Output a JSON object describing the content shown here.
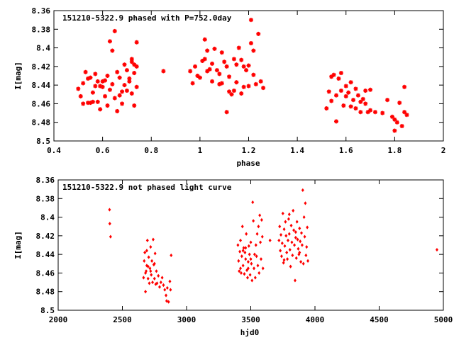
{
  "chart_data": [
    {
      "type": "scatter",
      "title": "151210-5322.9 phased with P=752.0day",
      "xlabel": "phase",
      "ylabel": "I[mag]",
      "xlim": [
        0.4,
        2.0
      ],
      "ylim": [
        8.36,
        8.5
      ],
      "y_inverted": true,
      "grid": false,
      "marker": "asterisk",
      "color": "#ff0000",
      "x_ticks": [
        "0.4",
        "0.6",
        "0.8",
        "1",
        "1.2",
        "1.4",
        "1.6",
        "1.8",
        "2"
      ],
      "y_ticks": [
        "8.36",
        "8.38",
        "8.4",
        "8.42",
        "8.44",
        "8.46",
        "8.48",
        "8.5"
      ],
      "x_tick_values": [
        0.4,
        0.6,
        0.8,
        1.0,
        1.2,
        1.4,
        1.6,
        1.8,
        2.0
      ],
      "y_tick_values": [
        8.36,
        8.38,
        8.4,
        8.42,
        8.44,
        8.46,
        8.48,
        8.5
      ],
      "points": [
        [
          0.5,
          8.444
        ],
        [
          0.51,
          8.452
        ],
        [
          0.52,
          8.438
        ],
        [
          0.53,
          8.426
        ],
        [
          0.54,
          8.459
        ],
        [
          0.55,
          8.432
        ],
        [
          0.56,
          8.448
        ],
        [
          0.57,
          8.428
        ],
        [
          0.58,
          8.458
        ],
        [
          0.59,
          8.441
        ],
        [
          0.6,
          8.436
        ],
        [
          0.61,
          8.452
        ],
        [
          0.62,
          8.43
        ],
        [
          0.62,
          8.462
        ],
        [
          0.63,
          8.445
        ],
        [
          0.64,
          8.439
        ],
        [
          0.65,
          8.454
        ],
        [
          0.66,
          8.468
        ],
        [
          0.67,
          8.432
        ],
        [
          0.68,
          8.447
        ],
        [
          0.69,
          8.44
        ],
        [
          0.7,
          8.424
        ],
        [
          0.71,
          8.436
        ],
        [
          0.72,
          8.412
        ],
        [
          0.72,
          8.449
        ],
        [
          0.73,
          8.418
        ],
        [
          0.74,
          8.42
        ],
        [
          0.74,
          8.442
        ],
        [
          0.55,
          8.459
        ],
        [
          0.57,
          8.441
        ],
        [
          0.59,
          8.466
        ],
        [
          0.61,
          8.435
        ],
        [
          0.63,
          8.393
        ],
        [
          0.64,
          8.403
        ],
        [
          0.65,
          8.382
        ],
        [
          0.67,
          8.451
        ],
        [
          0.69,
          8.418
        ],
        [
          0.71,
          8.433
        ],
        [
          0.73,
          8.462
        ],
        [
          0.74,
          8.394
        ],
        [
          0.52,
          8.46
        ],
        [
          0.54,
          8.433
        ],
        [
          0.56,
          8.458
        ],
        [
          0.58,
          8.436
        ],
        [
          0.6,
          8.442
        ],
        [
          0.66,
          8.426
        ],
        [
          0.68,
          8.46
        ],
        [
          0.7,
          8.446
        ],
        [
          0.72,
          8.415
        ],
        [
          0.73,
          8.427
        ],
        [
          0.85,
          8.425
        ],
        [
          0.96,
          8.425
        ],
        [
          0.97,
          8.438
        ],
        [
          0.98,
          8.42
        ],
        [
          0.99,
          8.43
        ],
        [
          1.0,
          8.432
        ],
        [
          1.01,
          8.414
        ],
        [
          1.02,
          8.391
        ],
        [
          1.03,
          8.403
        ],
        [
          1.04,
          8.423
        ],
        [
          1.05,
          8.436
        ],
        [
          1.06,
          8.401
        ],
        [
          1.07,
          8.424
        ],
        [
          1.08,
          8.439
        ],
        [
          1.09,
          8.405
        ],
        [
          1.1,
          8.415
        ],
        [
          1.11,
          8.42
        ],
        [
          1.12,
          8.431
        ],
        [
          1.13,
          8.45
        ],
        [
          1.14,
          8.446
        ],
        [
          1.15,
          8.437
        ],
        [
          1.16,
          8.4
        ],
        [
          1.17,
          8.413
        ],
        [
          1.18,
          8.442
        ],
        [
          1.19,
          8.424
        ],
        [
          1.2,
          8.419
        ],
        [
          1.21,
          8.37
        ],
        [
          1.22,
          8.429
        ],
        [
          1.23,
          8.439
        ],
        [
          1.24,
          8.385
        ],
        [
          1.25,
          8.436
        ],
        [
          1.26,
          8.443
        ],
        [
          1.02,
          8.412
        ],
        [
          1.08,
          8.428
        ],
        [
          1.12,
          8.447
        ],
        [
          1.14,
          8.412
        ],
        [
          1.18,
          8.42
        ],
        [
          1.2,
          8.441
        ],
        [
          1.22,
          8.403
        ],
        [
          1.09,
          8.438
        ],
        [
          1.11,
          8.469
        ],
        [
          1.15,
          8.418
        ],
        [
          1.03,
          8.425
        ],
        [
          1.05,
          8.417
        ],
        [
          1.17,
          8.449
        ],
        [
          1.21,
          8.395
        ],
        [
          1.52,
          8.465
        ],
        [
          1.53,
          8.447
        ],
        [
          1.54,
          8.457
        ],
        [
          1.55,
          8.429
        ],
        [
          1.56,
          8.479
        ],
        [
          1.57,
          8.433
        ],
        [
          1.58,
          8.446
        ],
        [
          1.59,
          8.462
        ],
        [
          1.6,
          8.441
        ],
        [
          1.61,
          8.448
        ],
        [
          1.62,
          8.437
        ],
        [
          1.63,
          8.456
        ],
        [
          1.64,
          8.465
        ],
        [
          1.65,
          8.451
        ],
        [
          1.66,
          8.469
        ],
        [
          1.67,
          8.455
        ],
        [
          1.68,
          8.46
        ],
        [
          1.69,
          8.469
        ],
        [
          1.7,
          8.467
        ],
        [
          1.72,
          8.469
        ],
        [
          1.75,
          8.47
        ],
        [
          1.77,
          8.456
        ],
        [
          1.79,
          8.474
        ],
        [
          1.8,
          8.489
        ],
        [
          1.81,
          8.48
        ],
        [
          1.82,
          8.459
        ],
        [
          1.83,
          8.484
        ],
        [
          1.84,
          8.469
        ],
        [
          1.84,
          8.442
        ],
        [
          1.85,
          8.472
        ],
        [
          1.58,
          8.427
        ],
        [
          1.6,
          8.452
        ],
        [
          1.62,
          8.463
        ],
        [
          1.64,
          8.444
        ],
        [
          1.66,
          8.458
        ],
        [
          1.54,
          8.431
        ],
        [
          1.56,
          8.451
        ],
        [
          1.68,
          8.446
        ],
        [
          1.7,
          8.445
        ],
        [
          1.8,
          8.477
        ]
      ]
    },
    {
      "type": "scatter",
      "title": "151210-5322.9 not phased light curve",
      "xlabel": "hjd0",
      "ylabel": "I[mag]",
      "xlim": [
        2000,
        5000
      ],
      "ylim": [
        8.36,
        8.5
      ],
      "y_inverted": true,
      "grid": false,
      "marker": "diamond",
      "color": "#ff0000",
      "x_ticks": [
        "2000",
        "2500",
        "3000",
        "3500",
        "4000",
        "4500",
        "5000"
      ],
      "y_ticks": [
        "8.36",
        "8.38",
        "8.4",
        "8.42",
        "8.44",
        "8.46",
        "8.48",
        "8.5"
      ],
      "x_tick_values": [
        2000,
        2500,
        3000,
        3500,
        4000,
        4500,
        5000
      ],
      "y_tick_values": [
        8.36,
        8.38,
        8.4,
        8.42,
        8.44,
        8.46,
        8.48,
        8.5
      ],
      "points": [
        [
          2400,
          8.392
        ],
        [
          2402,
          8.407
        ],
        [
          2408,
          8.421
        ],
        [
          2665,
          8.465
        ],
        [
          2670,
          8.447
        ],
        [
          2675,
          8.438
        ],
        [
          2680,
          8.48
        ],
        [
          2685,
          8.458
        ],
        [
          2690,
          8.452
        ],
        [
          2695,
          8.425
        ],
        [
          2700,
          8.466
        ],
        [
          2705,
          8.443
        ],
        [
          2710,
          8.471
        ],
        [
          2715,
          8.455
        ],
        [
          2720,
          8.432
        ],
        [
          2725,
          8.462
        ],
        [
          2730,
          8.447
        ],
        [
          2735,
          8.47
        ],
        [
          2740,
          8.424
        ],
        [
          2745,
          8.451
        ],
        [
          2750,
          8.466
        ],
        [
          2755,
          8.439
        ],
        [
          2760,
          8.472
        ],
        [
          2765,
          8.458
        ],
        [
          2770,
          8.471
        ],
        [
          2780,
          8.463
        ],
        [
          2790,
          8.475
        ],
        [
          2800,
          8.47
        ],
        [
          2810,
          8.465
        ],
        [
          2820,
          8.473
        ],
        [
          2830,
          8.478
        ],
        [
          2840,
          8.484
        ],
        [
          2845,
          8.49
        ],
        [
          2850,
          8.476
        ],
        [
          2860,
          8.491
        ],
        [
          2870,
          8.469
        ],
        [
          2875,
          8.478
        ],
        [
          2880,
          8.441
        ],
        [
          2700,
          8.453
        ],
        [
          2720,
          8.458
        ],
        [
          2750,
          8.45
        ],
        [
          2680,
          8.46
        ],
        [
          2690,
          8.436
        ],
        [
          3400,
          8.43
        ],
        [
          3405,
          8.447
        ],
        [
          3410,
          8.458
        ],
        [
          3415,
          8.437
        ],
        [
          3420,
          8.425
        ],
        [
          3425,
          8.46
        ],
        [
          3430,
          8.442
        ],
        [
          3435,
          8.41
        ],
        [
          3440,
          8.452
        ],
        [
          3445,
          8.433
        ],
        [
          3450,
          8.461
        ],
        [
          3455,
          8.438
        ],
        [
          3460,
          8.445
        ],
        [
          3465,
          8.418
        ],
        [
          3470,
          8.457
        ],
        [
          3475,
          8.465
        ],
        [
          3480,
          8.448
        ],
        [
          3485,
          8.431
        ],
        [
          3490,
          8.44
        ],
        [
          3495,
          8.462
        ],
        [
          3500,
          8.427
        ],
        [
          3505,
          8.45
        ],
        [
          3510,
          8.468
        ],
        [
          3515,
          8.384
        ],
        [
          3520,
          8.404
        ],
        [
          3525,
          8.455
        ],
        [
          3530,
          8.44
        ],
        [
          3535,
          8.465
        ],
        [
          3540,
          8.43
        ],
        [
          3545,
          8.442
        ],
        [
          3550,
          8.418
        ],
        [
          3555,
          8.452
        ],
        [
          3560,
          8.41
        ],
        [
          3565,
          8.46
        ],
        [
          3570,
          8.398
        ],
        [
          3575,
          8.427
        ],
        [
          3580,
          8.445
        ],
        [
          3585,
          8.403
        ],
        [
          3590,
          8.421
        ],
        [
          3595,
          8.455
        ],
        [
          3420,
          8.455
        ],
        [
          3440,
          8.436
        ],
        [
          3460,
          8.433
        ],
        [
          3480,
          8.455
        ],
        [
          3500,
          8.445
        ],
        [
          3650,
          8.425
        ],
        [
          3720,
          8.425
        ],
        [
          3725,
          8.41
        ],
        [
          3730,
          8.436
        ],
        [
          3735,
          8.419
        ],
        [
          3740,
          8.442
        ],
        [
          3745,
          8.428
        ],
        [
          3750,
          8.396
        ],
        [
          3755,
          8.449
        ],
        [
          3760,
          8.413
        ],
        [
          3765,
          8.431
        ],
        [
          3770,
          8.405
        ],
        [
          3775,
          8.42
        ],
        [
          3780,
          8.438
        ],
        [
          3785,
          8.445
        ],
        [
          3790,
          8.425
        ],
        [
          3795,
          8.402
        ],
        [
          3800,
          8.418
        ],
        [
          3805,
          8.435
        ],
        [
          3810,
          8.453
        ],
        [
          3815,
          8.409
        ],
        [
          3820,
          8.427
        ],
        [
          3825,
          8.441
        ],
        [
          3830,
          8.393
        ],
        [
          3835,
          8.414
        ],
        [
          3840,
          8.43
        ],
        [
          3845,
          8.468
        ],
        [
          3850,
          8.416
        ],
        [
          3855,
          8.444
        ],
        [
          3860,
          8.405
        ],
        [
          3865,
          8.424
        ],
        [
          3870,
          8.434
        ],
        [
          3875,
          8.44
        ],
        [
          3880,
          8.412
        ],
        [
          3885,
          8.426
        ],
        [
          3890,
          8.448
        ],
        [
          3895,
          8.417
        ],
        [
          3900,
          8.43
        ],
        [
          3905,
          8.371
        ],
        [
          3910,
          8.45
        ],
        [
          3915,
          8.4
        ],
        [
          3920,
          8.421
        ],
        [
          3925,
          8.385
        ],
        [
          3930,
          8.441
        ],
        [
          3935,
          8.432
        ],
        [
          3940,
          8.411
        ],
        [
          3945,
          8.447
        ],
        [
          3800,
          8.397
        ],
        [
          3850,
          8.422
        ],
        [
          3880,
          8.438
        ],
        [
          3760,
          8.446
        ],
        [
          4950,
          8.435
        ]
      ]
    }
  ]
}
